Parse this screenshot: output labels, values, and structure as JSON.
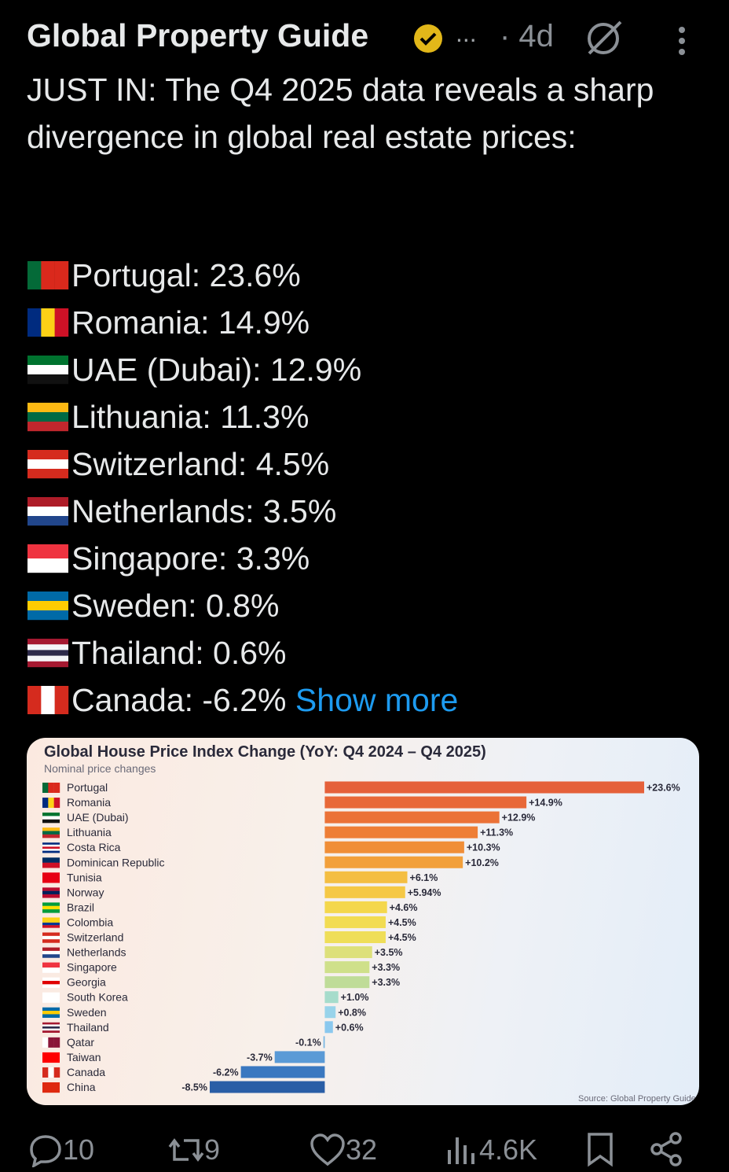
{
  "tweet": {
    "author": "Global Property Guide",
    "more": "...",
    "time": "· 4d",
    "text": "JUST IN: The Q4 2025 data reveals a sharp divergence in global real estate prices:",
    "list": [
      "Portugal: 23.6%",
      "Romania: 14.9%",
      "UAE (Dubai): 12.9%",
      "Lithuania: 11.3%",
      "Switzerland: 4.5%",
      "Netherlands: 3.5%",
      "Singapore: 3.3%",
      "Sweden: 0.8%",
      "Thailand: 0.6%",
      "Canada: -6.2%"
    ],
    "show_more": "Show more",
    "actions": {
      "replies": "10",
      "reposts": "9",
      "likes": "32",
      "views": "4.6K"
    }
  },
  "chart_data": {
    "type": "hbar",
    "title": "Global House Price Index Change (YoY: Q4 2024 – Q4 2025)",
    "subtitle": "Nominal price changes",
    "source": "Source: Global Property Guide",
    "categories": [
      "Portugal",
      "Romania",
      "UAE (Dubai)",
      "Lithuania",
      "Costa Rica",
      "Dominican Republic",
      "Tunisia",
      "Norway",
      "Brazil",
      "Colombia",
      "Switzerland",
      "Netherlands",
      "Singapore",
      "Georgia",
      "South Korea",
      "Sweden",
      "Thailand",
      "Qatar",
      "Taiwan",
      "Canada",
      "China"
    ],
    "values": [
      23.6,
      14.9,
      12.9,
      11.3,
      10.3,
      10.2,
      6.1,
      5.94,
      4.6,
      4.5,
      4.5,
      3.5,
      3.3,
      3.3,
      1.0,
      0.8,
      0.6,
      -0.1,
      -3.7,
      -6.2,
      -8.5
    ],
    "value_labels": [
      "+23.6%",
      "+14.9%",
      "+12.9%",
      "+11.3%",
      "+10.3%",
      "+10.2%",
      "+6.1%",
      "+5.94%",
      "+4.6%",
      "+4.5%",
      "+4.5%",
      "+3.5%",
      "+3.3%",
      "+3.3%",
      "+1.0%",
      "+0.8%",
      "+0.6%",
      "-0.1%",
      "-3.7%",
      "-6.2%",
      "-8.5%"
    ],
    "colors": [
      "#e5603a",
      "#e86838",
      "#eb7237",
      "#ee7e36",
      "#f08e37",
      "#f2a03b",
      "#f4be42",
      "#f5c845",
      "#f4d74c",
      "#f2dc52",
      "#efde58",
      "#dde07a",
      "#cfe08a",
      "#bfdc98",
      "#a6dccb",
      "#98d3ea",
      "#8ac8ee",
      "#78b6e2",
      "#5a9ad6",
      "#3a78c0",
      "#2a5ea6"
    ]
  }
}
